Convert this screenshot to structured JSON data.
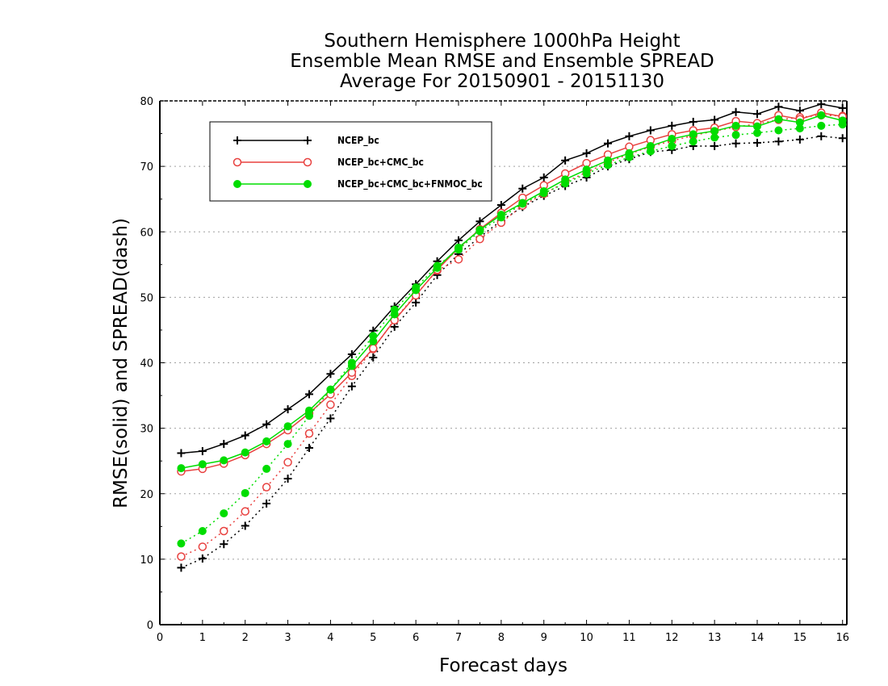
{
  "chart_data": {
    "type": "line",
    "title": [
      "Southern Hemisphere 1000hPa Height",
      "Ensemble Mean RMSE and Ensemble SPREAD",
      "Average For 20150901 - 20151130"
    ],
    "xlabel": "Forecast days",
    "ylabel": "RMSE(solid) and SPREAD(dash)",
    "xlim": [
      0,
      16.1
    ],
    "ylim": [
      0,
      80
    ],
    "xticks": [
      0,
      1,
      2,
      3,
      4,
      5,
      6,
      7,
      8,
      9,
      10,
      11,
      12,
      13,
      14,
      15,
      16
    ],
    "yticks": [
      0,
      10,
      20,
      30,
      40,
      50,
      60,
      70,
      80
    ],
    "grid": "horizontal dotted",
    "legend_position": "top-left",
    "x": [
      0.5,
      1,
      1.5,
      2,
      2.5,
      3,
      3.5,
      4,
      4.5,
      5,
      5.5,
      6,
      6.5,
      7,
      7.5,
      8,
      8.5,
      9,
      9.5,
      10,
      10.5,
      11,
      11.5,
      12,
      12.5,
      13,
      13.5,
      14,
      14.5,
      15,
      15.5,
      16
    ],
    "series": [
      {
        "name": "NCEP_bc",
        "color": "#000000",
        "marker": "plus",
        "rmse": [
          26.2,
          26.5,
          27.6,
          28.9,
          30.6,
          32.9,
          35.2,
          38.3,
          41.3,
          44.9,
          48.6,
          52.0,
          55.5,
          58.7,
          61.6,
          64.1,
          66.6,
          68.3,
          70.9,
          72.0,
          73.5,
          74.6,
          75.5,
          76.2,
          76.8,
          77.1,
          78.3,
          78.0,
          79.1,
          78.5,
          79.5,
          78.9
        ],
        "spread": [
          8.7,
          10.1,
          12.3,
          15.1,
          18.5,
          22.3,
          27.0,
          31.5,
          36.4,
          40.8,
          45.5,
          49.2,
          53.4,
          56.6,
          59.2,
          61.7,
          63.8,
          65.5,
          67.0,
          68.3,
          70.0,
          71.1,
          72.2,
          72.5,
          73.1,
          73.1,
          73.5,
          73.6,
          73.8,
          74.1,
          74.6,
          74.3
        ]
      },
      {
        "name": "NCEP_bc+CMC_bc",
        "color": "#e8413f",
        "marker": "open-circle",
        "rmse": [
          23.4,
          23.8,
          24.6,
          25.9,
          27.6,
          29.7,
          32.3,
          35.2,
          38.5,
          42.2,
          46.5,
          50.3,
          54.2,
          57.5,
          60.4,
          62.9,
          65.2,
          67.1,
          68.9,
          70.5,
          71.8,
          73.0,
          74.0,
          74.9,
          75.5,
          75.9,
          76.9,
          76.6,
          77.8,
          77.2,
          78.2,
          77.6
        ],
        "spread": [
          10.4,
          11.9,
          14.3,
          17.3,
          21.0,
          24.8,
          29.2,
          33.6,
          38.0,
          42.1,
          46.6,
          50.4,
          54.1,
          55.8,
          58.9,
          61.4,
          64.0,
          65.8,
          67.6,
          69.1,
          70.6,
          71.9,
          73.0,
          73.9,
          74.7,
          75.4,
          76.0,
          76.5,
          77.1,
          77.5,
          77.8,
          77.7
        ]
      },
      {
        "name": "NCEP_bc+CMC_bc+FNMOC_bc",
        "color": "#00dd00",
        "marker": "filled-circle",
        "rmse": [
          23.9,
          24.5,
          25.1,
          26.3,
          28.0,
          30.3,
          32.7,
          35.9,
          39.5,
          43.3,
          47.4,
          51.1,
          54.5,
          57.6,
          60.3,
          62.6,
          64.4,
          66.2,
          68.0,
          69.5,
          70.9,
          72.0,
          73.1,
          74.2,
          74.9,
          75.4,
          76.2,
          76.1,
          77.2,
          76.7,
          77.8,
          77.0
        ],
        "spread": [
          12.4,
          14.3,
          17.0,
          20.1,
          23.8,
          27.6,
          31.9,
          35.9,
          40.0,
          44.1,
          48.1,
          51.5,
          54.8,
          57.3,
          60.1,
          62.2,
          64.3,
          65.9,
          67.4,
          68.9,
          70.2,
          71.4,
          72.3,
          73.1,
          73.8,
          74.4,
          74.8,
          75.1,
          75.5,
          75.8,
          76.2,
          76.4
        ]
      }
    ]
  }
}
